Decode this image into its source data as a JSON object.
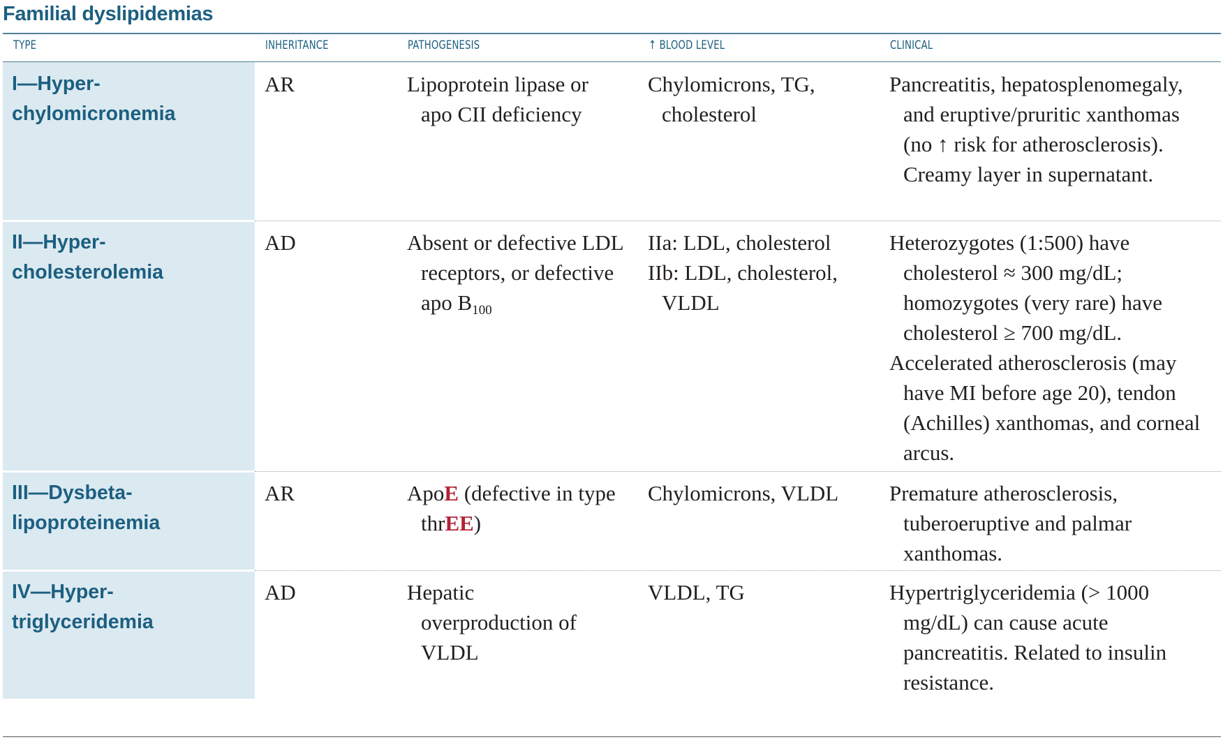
{
  "title": "Familial dyslipidemias",
  "headers": {
    "type": "TYPE",
    "inheritance": "INHERITANCE",
    "pathogenesis": "PATHOGENESIS",
    "blood_level": "↑ BLOOD LEVEL",
    "clinical": "CLINICAL"
  },
  "rows": [
    {
      "type": "I—Hyper-\nchylomicronemia",
      "inheritance": "AR",
      "pathogenesis": "Lipoprotein lipase or apo CII deficiency",
      "blood_level": "Chylomicrons, TG, cholesterol",
      "clinical": "Pancreatitis, hepatosplenomegaly, and eruptive/pruritic xanthomas (no ↑ risk for atherosclerosis). Creamy layer in supernatant."
    },
    {
      "type": "II—Hyper-\ncholesterolemia",
      "inheritance": "AD",
      "pathogenesis_a": "Absent or defective LDL receptors, or defective apo B",
      "pathogenesis_sub": "100",
      "blood_level_a": "IIa: LDL, cholesterol",
      "blood_level_b": "IIb: LDL, cholesterol, VLDL",
      "clinical_a": "Heterozygotes (1:500) have cholesterol ≈ 300 mg/dL; homozygotes (very rare) have cholesterol ≥ 700 mg/dL.",
      "clinical_b": "Accelerated atherosclerosis (may have MI before age 20), tendon (Achilles) xanthomas, and corneal arcus."
    },
    {
      "type": "III—Dysbeta-\nlipoproteinemia",
      "inheritance": "AR",
      "pathogenesis_1": "Apo",
      "pathogenesis_2": "E",
      "pathogenesis_3": " (defective in type thr",
      "pathogenesis_4": "EE",
      "pathogenesis_5": ")",
      "blood_level": "Chylomicrons, VLDL",
      "clinical": "Premature atherosclerosis, tuberoeruptive and palmar xanthomas."
    },
    {
      "type": "IV—Hyper-\ntriglyceridemia",
      "inheritance": "AD",
      "pathogenesis": "Hepatic overproduction of VLDL",
      "blood_level": "VLDL, TG",
      "clinical": "Hypertriglyceridemia (> 1000 mg/dL) can cause acute pancreatitis. Related to insulin resistance."
    }
  ],
  "colors": {
    "heading": "#1c5f80",
    "type_column_bg": "#dbe9f1",
    "emphasis_red": "#b22234",
    "body_text": "#231f20"
  }
}
